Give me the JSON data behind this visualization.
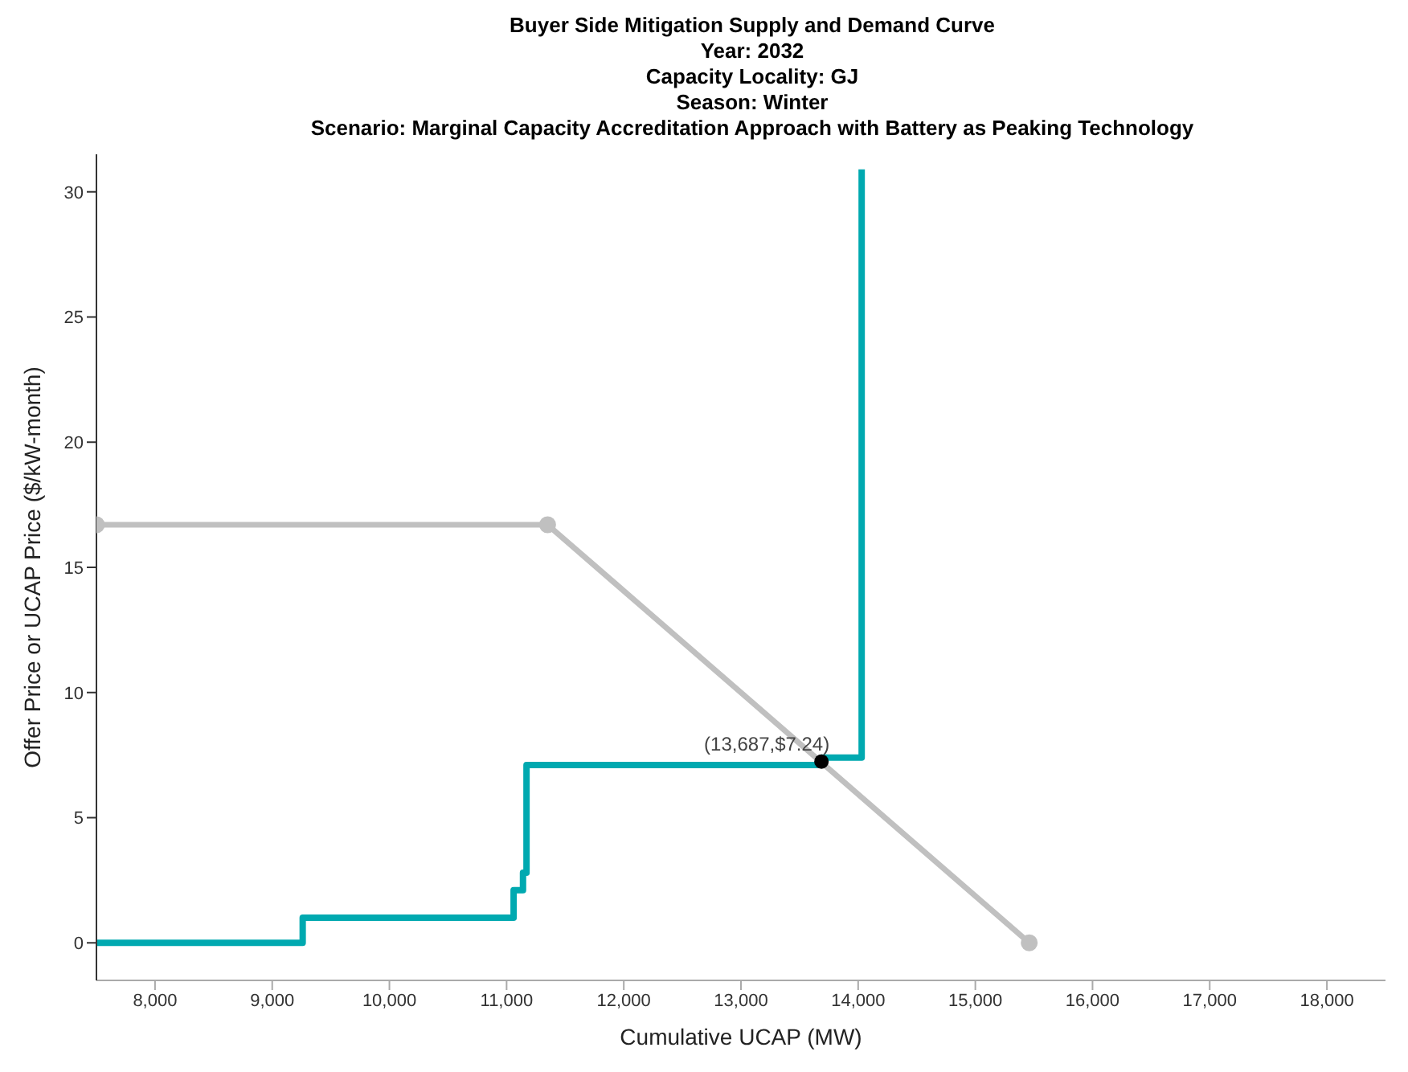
{
  "chart_data": {
    "type": "line",
    "title": "Buyer Side Mitigation Supply and Demand Curve\nYear: 2032\nCapacity Locality: GJ\nSeason: Winter\nScenario: Marginal Capacity Accreditation Approach with Battery as Peaking Technology",
    "xlabel": "Cumulative UCAP (MW)",
    "ylabel": "Offer Price or UCAP Price ($/kW-month)",
    "series": [
      {
        "color": "#c0c0c0",
        "marker": "circle",
        "x": [
          7500,
          11350,
          15460
        ],
        "values": [
          16.7,
          16.7,
          0
        ]
      },
      {
        "type": "step",
        "color": "#00a9b0",
        "marker": "none",
        "x": [
          7500,
          9260,
          11060,
          11140,
          11170,
          13687,
          14030
        ],
        "values": [
          0,
          1,
          2.1,
          2.8,
          7.1,
          7.4,
          30.9
        ]
      },
      {
        "type": "scatter",
        "color": "#000000",
        "marker": "circle",
        "x": [
          13687
        ],
        "values": [
          7.24
        ]
      }
    ],
    "annotations": [
      {
        "text": "(13,687,$7.24)",
        "x": 13687,
        "y": 7.24
      }
    ],
    "xlim": [
      7500,
      18500
    ],
    "xticks": [
      {
        "value": 8000,
        "label": "8,000"
      },
      {
        "value": 9000,
        "label": "9,000"
      },
      {
        "value": 10000,
        "label": "10,000"
      },
      {
        "value": 11000,
        "label": "11,000"
      },
      {
        "value": 12000,
        "label": "12,000"
      },
      {
        "value": 13000,
        "label": "13,000"
      },
      {
        "value": 14000,
        "label": "14,000"
      },
      {
        "value": 15000,
        "label": "15,000"
      },
      {
        "value": 16000,
        "label": "16,000"
      },
      {
        "value": 17000,
        "label": "17,000"
      },
      {
        "value": 18000,
        "label": "18,000"
      }
    ],
    "ylim": [
      -1.5,
      31.5
    ],
    "yticks": [
      0,
      5,
      10,
      15,
      20,
      25,
      30
    ],
    "grid": false
  }
}
